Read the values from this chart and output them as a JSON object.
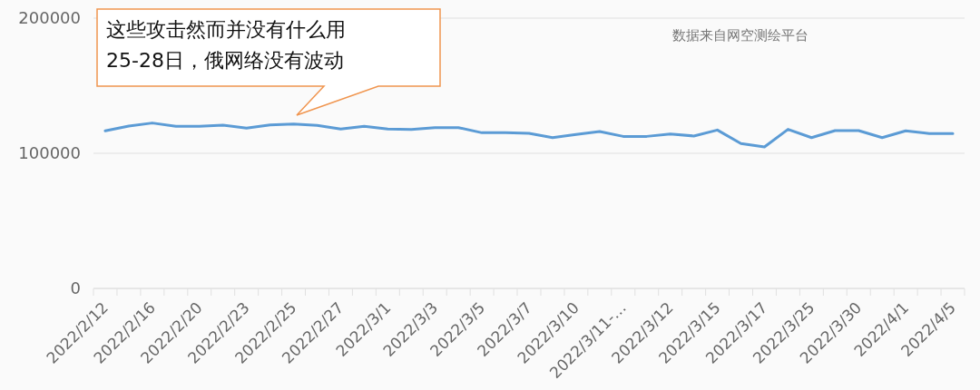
{
  "chart_data": {
    "type": "line",
    "categories": [
      "2022/2/12",
      null,
      "2022/2/16",
      null,
      "2022/2/20",
      null,
      "2022/2/23",
      null,
      "2022/2/25",
      null,
      "2022/2/27",
      null,
      "2022/3/1",
      null,
      "2022/3/3",
      null,
      "2022/3/5",
      null,
      "2022/3/7",
      null,
      "2022/3/10",
      null,
      "2022/3/11-…",
      null,
      "2022/3/12",
      null,
      "2022/3/15",
      null,
      "2022/3/17",
      null,
      "2022/3/25",
      null,
      "2022/3/30",
      null,
      "2022/4/1",
      null,
      "2022/4/5"
    ],
    "series": [
      {
        "color": "#5b9bd5",
        "values": [
          116600,
          120100,
          122400,
          119900,
          119900,
          120800,
          118600,
          121000,
          121700,
          120600,
          117900,
          119900,
          117900,
          117700,
          119000,
          119000,
          115200,
          115200,
          114800,
          111600,
          113900,
          116100,
          112500,
          112500,
          114300,
          112800,
          117200,
          107200,
          104700,
          117700,
          111600,
          116800,
          116800,
          111600,
          116600,
          114600,
          114600
        ]
      }
    ],
    "ylim": [
      0,
      200000
    ],
    "yticks": [
      0,
      100000,
      200000
    ],
    "grid": "y",
    "marker": "none",
    "line_style": "solid",
    "annotations": [
      "这些攻击然而并没有什么用\n25-28日，俄网络没有波动",
      "数据来自网空测绘平台"
    ]
  }
}
